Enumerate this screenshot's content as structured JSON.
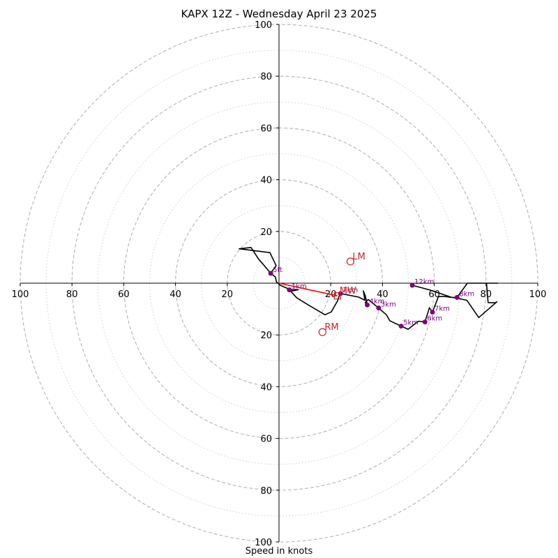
{
  "chart_data": {
    "type": "hodograph",
    "title": "KAPX 12Z - Wednesday April 23 2025",
    "xlabel": "Speed in knots",
    "max_speed": 100,
    "ring_major": [
      20,
      40,
      60,
      80,
      100
    ],
    "ring_minor": [
      10,
      30,
      50,
      70,
      90
    ],
    "x_ticks": [
      {
        "v": -100,
        "label": "100"
      },
      {
        "v": -80,
        "label": "80"
      },
      {
        "v": -60,
        "label": "60"
      },
      {
        "v": -40,
        "label": "40"
      },
      {
        "v": -20,
        "label": "20"
      },
      {
        "v": 20,
        "label": "20"
      },
      {
        "v": 40,
        "label": "40"
      },
      {
        "v": 60,
        "label": "60"
      },
      {
        "v": 80,
        "label": "80"
      },
      {
        "v": 100,
        "label": "100"
      }
    ],
    "y_ticks": [
      {
        "v": 100,
        "label": "100"
      },
      {
        "v": 80,
        "label": "80"
      },
      {
        "v": 60,
        "label": "60"
      },
      {
        "v": 40,
        "label": "40"
      },
      {
        "v": 20,
        "label": "20"
      },
      {
        "v": -20,
        "label": "20"
      },
      {
        "v": -40,
        "label": "40"
      },
      {
        "v": -60,
        "label": "60"
      },
      {
        "v": -80,
        "label": "80"
      },
      {
        "v": -100,
        "label": "100"
      }
    ],
    "trace": [
      [
        -3.2,
        3.8
      ],
      [
        -1.1,
        6.8
      ],
      [
        -3.5,
        11.8
      ],
      [
        -15.4,
        13.3
      ],
      [
        -10.8,
        13.8
      ],
      [
        -8,
        9.5
      ],
      [
        -4.5,
        5.4
      ],
      [
        -3.2,
        3.8
      ],
      [
        -1.4,
        2.4
      ],
      [
        -1,
        0.5
      ],
      [
        0.5,
        -0.8
      ],
      [
        2.2,
        -1.6
      ],
      [
        4,
        -2.3
      ],
      [
        4.5,
        -2.5
      ],
      [
        7.5,
        -2.5
      ],
      [
        4.2,
        -3.2
      ],
      [
        4,
        -2.6
      ],
      [
        6.9,
        -5.7
      ],
      [
        10.8,
        -8.1
      ],
      [
        17.8,
        -12.2
      ],
      [
        20.2,
        -11.1
      ],
      [
        22.6,
        -6.9
      ],
      [
        23.5,
        -4.2
      ],
      [
        23.8,
        -4
      ],
      [
        30.8,
        -5.4
      ],
      [
        33.2,
        -6.6
      ],
      [
        32.6,
        -3
      ],
      [
        33.4,
        -5
      ],
      [
        34.1,
        -8.4
      ],
      [
        33.3,
        -7.5
      ],
      [
        34.5,
        -6.3
      ],
      [
        38.5,
        -9.6
      ],
      [
        41.5,
        -12.2
      ],
      [
        42.8,
        -14.5
      ],
      [
        47.2,
        -16.6
      ],
      [
        49.9,
        -17.8
      ],
      [
        53.9,
        -14.7
      ],
      [
        56.4,
        -15
      ],
      [
        57.5,
        -11.5
      ],
      [
        58.1,
        -9.5
      ],
      [
        59.3,
        -11.2
      ],
      [
        61.6,
        -5.2
      ],
      [
        63.7,
        -5.1
      ],
      [
        68.3,
        -5.7
      ],
      [
        72.6,
        -6.6
      ],
      [
        77.2,
        -13.3
      ],
      [
        84.2,
        -7.2
      ],
      [
        83.6,
        -7.6
      ],
      [
        80.8,
        -7.5
      ],
      [
        80.2,
        0
      ],
      [
        84.6,
        0
      ],
      [
        80.2,
        0
      ],
      [
        72.8,
        0
      ],
      [
        68.8,
        -5.5
      ],
      [
        66.8,
        -5.5
      ],
      [
        58.2,
        -2.6
      ],
      [
        51.5,
        -0.8
      ]
    ],
    "height_markers": [
      {
        "label": "5ft",
        "x": -3.2,
        "y": 3.8
      },
      {
        "label": "1km",
        "x": 4,
        "y": -2.6
      },
      {
        "label": "2km",
        "x": 23.8,
        "y": -4
      },
      {
        "label": "3km",
        "x": 38.5,
        "y": -9.6
      },
      {
        "label": "4km",
        "x": 34.1,
        "y": -8.4
      },
      {
        "label": "5km",
        "x": 47.2,
        "y": -16.6
      },
      {
        "label": "6km",
        "x": 56.4,
        "y": -15
      },
      {
        "label": "7km",
        "x": 59.3,
        "y": -11.2
      },
      {
        "label": "8km",
        "x": 68.8,
        "y": -5.5
      },
      {
        "label": "12km",
        "x": 51.5,
        "y": -0.8
      }
    ],
    "storm_motion": [
      {
        "label": "LM",
        "x": 27.6,
        "y": 8.4
      },
      {
        "label": "RM",
        "x": 16.8,
        "y": -18.9
      },
      {
        "label": "MW",
        "x": 22.6,
        "y": -4.9
      }
    ],
    "shear_vector": {
      "from": [
        0,
        0
      ],
      "to": [
        22.6,
        -4.9
      ]
    },
    "colors": {
      "trace": "#000000",
      "marker": "#800080",
      "storm": "#cc2222",
      "shear": "#ff0000",
      "ring": "#b4b4b4"
    }
  }
}
